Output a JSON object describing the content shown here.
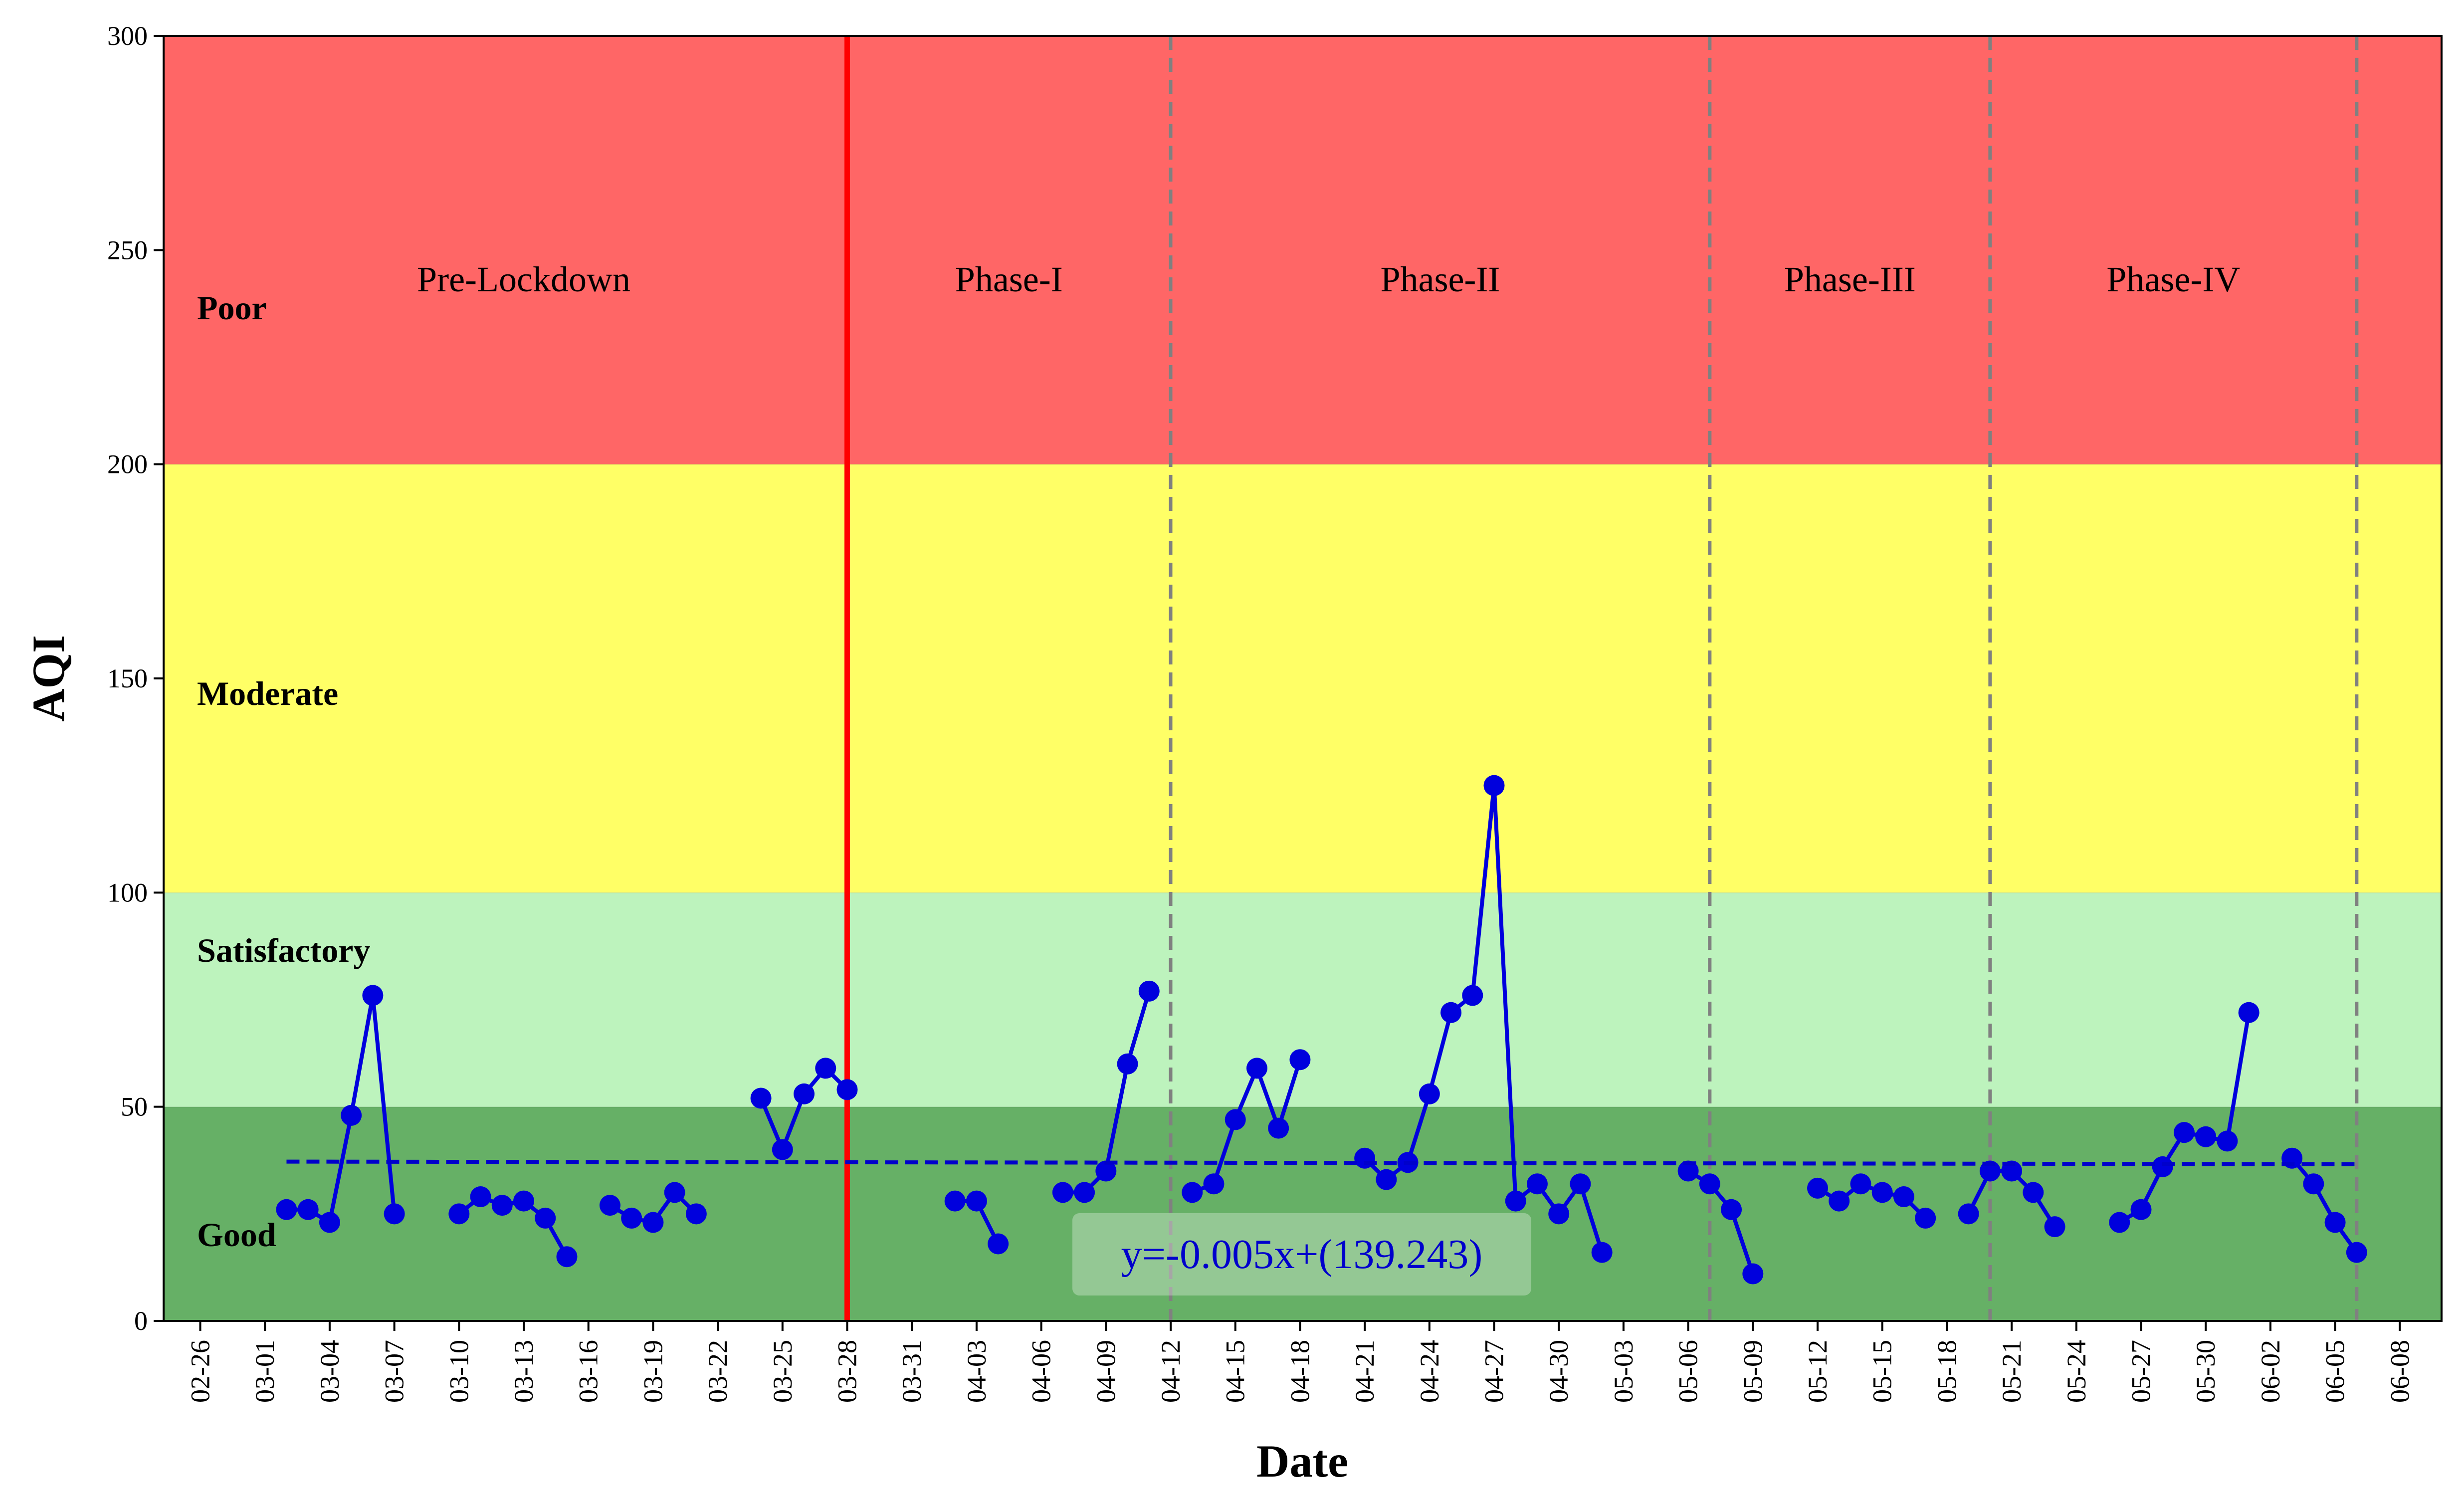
{
  "chart_data": {
    "type": "line",
    "xlabel": "Date",
    "ylabel": "AQI",
    "ylim": [
      0,
      300
    ],
    "yticks": [
      0,
      50,
      100,
      150,
      200,
      250,
      300
    ],
    "x_tick_labels": [
      "02-26",
      "03-01",
      "03-04",
      "03-07",
      "03-10",
      "03-13",
      "03-16",
      "03-19",
      "03-22",
      "03-25",
      "03-28",
      "03-31",
      "04-03",
      "04-06",
      "04-09",
      "04-12",
      "04-15",
      "04-18",
      "04-21",
      "04-24",
      "04-27",
      "04-30",
      "05-03",
      "05-06",
      "05-09",
      "05-12",
      "05-15",
      "05-18",
      "05-21",
      "05-24",
      "05-27",
      "05-30",
      "06-02",
      "06-05",
      "06-08"
    ],
    "bands": [
      {
        "label": "Good",
        "from": 0,
        "to": 50,
        "color": "#66b066"
      },
      {
        "label": "Satisfactory",
        "from": 50,
        "to": 100,
        "color": "#bdf3bd"
      },
      {
        "label": "Moderate",
        "from": 100,
        "to": 200,
        "color": "#ffff66"
      },
      {
        "label": "Poor",
        "from": 200,
        "to": 300,
        "color": "#ff6666"
      }
    ],
    "phases": [
      {
        "label": "Pre-Lockdown",
        "start": "02-26",
        "end": "03-27"
      },
      {
        "label": "Phase-I",
        "start": "03-27",
        "end": "04-11"
      },
      {
        "label": "Phase-II",
        "start": "04-11",
        "end": "05-06"
      },
      {
        "label": "Phase-III",
        "start": "05-06",
        "end": "05-19"
      },
      {
        "label": "Phase-IV",
        "start": "05-19",
        "end": "06-05"
      }
    ],
    "lockdown_line": {
      "date": "03-27",
      "color": "#ff0000"
    },
    "phase_boundaries": [
      "04-11",
      "05-06",
      "05-19",
      "06-05"
    ],
    "series": [
      {
        "color": "#0000dd",
        "points": [
          [
            "03-01",
            26
          ],
          [
            "03-02",
            26
          ],
          [
            "03-03",
            23
          ],
          [
            "03-04",
            48
          ],
          [
            "03-05",
            76
          ],
          [
            "03-06",
            25
          ],
          null,
          [
            "03-09",
            25
          ],
          [
            "03-10",
            29
          ],
          [
            "03-11",
            27
          ],
          [
            "03-12",
            28
          ],
          [
            "03-13",
            24
          ],
          [
            "03-14",
            15
          ],
          null,
          [
            "03-16",
            27
          ],
          [
            "03-17",
            24
          ],
          [
            "03-18",
            23
          ],
          [
            "03-19",
            30
          ],
          [
            "03-20",
            25
          ],
          null,
          [
            "03-23",
            52
          ],
          [
            "03-24",
            40
          ],
          [
            "03-25",
            53
          ],
          [
            "03-26",
            59
          ],
          [
            "03-27",
            54
          ],
          null,
          [
            "04-01",
            28
          ],
          [
            "04-02",
            28
          ],
          [
            "04-03",
            18
          ],
          null,
          [
            "04-06",
            30
          ],
          [
            "04-07",
            30
          ],
          [
            "04-08",
            35
          ],
          [
            "04-09",
            60
          ],
          [
            "04-10",
            77
          ],
          null,
          [
            "04-12",
            30
          ],
          [
            "04-13",
            32
          ],
          [
            "04-14",
            47
          ],
          [
            "04-15",
            59
          ],
          [
            "04-16",
            45
          ],
          [
            "04-17",
            61
          ],
          null,
          [
            "04-20",
            38
          ],
          [
            "04-21",
            33
          ],
          [
            "04-22",
            37
          ],
          [
            "04-23",
            53
          ],
          [
            "04-24",
            72
          ],
          [
            "04-25",
            76
          ],
          [
            "04-26",
            125
          ],
          [
            "04-27",
            28
          ],
          [
            "04-28",
            32
          ],
          [
            "04-29",
            25
          ],
          [
            "04-30",
            32
          ],
          [
            "05-01",
            16
          ],
          null,
          [
            "05-05",
            35
          ],
          [
            "05-06",
            32
          ],
          [
            "05-07",
            26
          ],
          [
            "05-08",
            11
          ],
          null,
          [
            "05-11",
            31
          ],
          [
            "05-12",
            28
          ],
          [
            "05-13",
            32
          ],
          [
            "05-14",
            30
          ],
          [
            "05-15",
            29
          ],
          [
            "05-16",
            24
          ],
          null,
          [
            "05-18",
            25
          ],
          [
            "05-19",
            35
          ],
          [
            "05-20",
            35
          ],
          [
            "05-21",
            30
          ],
          [
            "05-22",
            22
          ],
          null,
          [
            "05-25",
            23
          ],
          [
            "05-26",
            26
          ],
          [
            "05-27",
            36
          ],
          [
            "05-28",
            44
          ],
          [
            "05-29",
            43
          ],
          [
            "05-30",
            42
          ],
          [
            "05-31",
            72
          ],
          null,
          [
            "06-02",
            38
          ],
          [
            "06-03",
            32
          ],
          [
            "06-04",
            23
          ],
          [
            "06-05",
            16
          ]
        ]
      }
    ],
    "trendline": {
      "start": [
        "03-01",
        37.2
      ],
      "end": [
        "06-05",
        36.6
      ],
      "equation": "y=-0.005x+(139.243)"
    }
  }
}
